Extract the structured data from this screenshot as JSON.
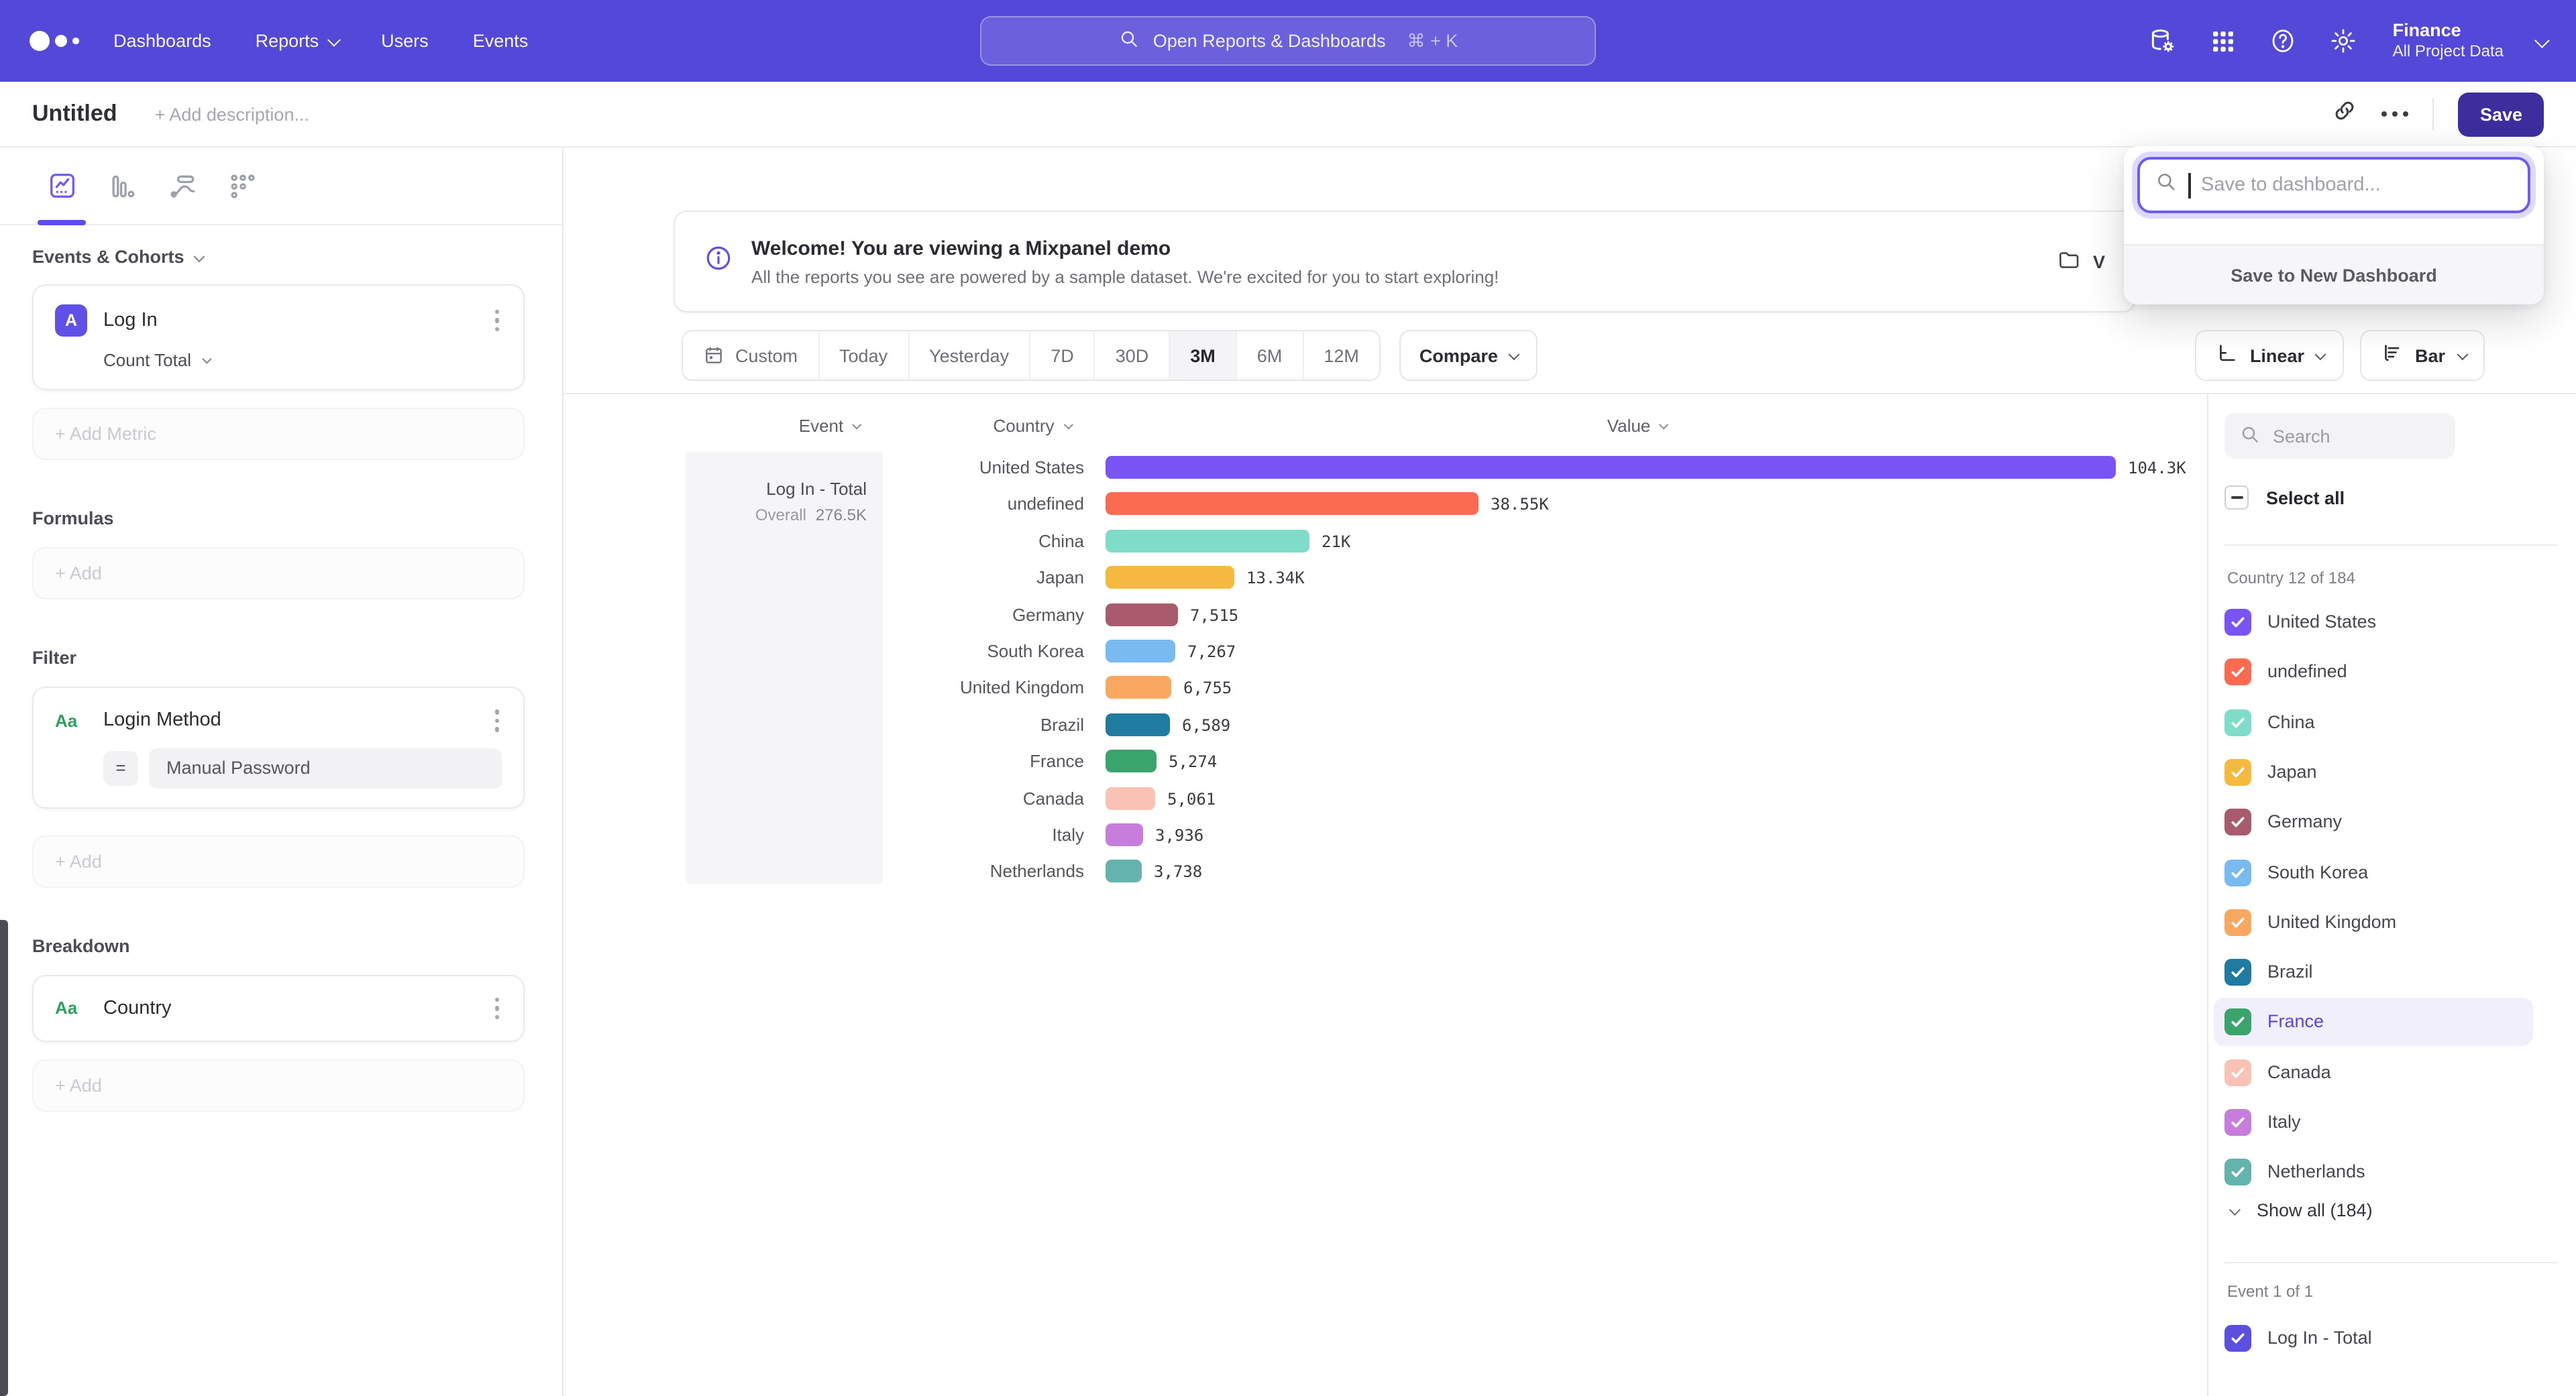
{
  "nav": {
    "items": [
      {
        "label": "Dashboards",
        "chevron": false
      },
      {
        "label": "Reports",
        "chevron": true
      },
      {
        "label": "Users",
        "chevron": false
      },
      {
        "label": "Events",
        "chevron": false
      }
    ],
    "search": {
      "placeholder": "Open Reports & Dashboards",
      "shortcut": "⌘ + K"
    },
    "project": {
      "name": "Finance",
      "scope": "All Project Data"
    }
  },
  "doc": {
    "title": "Untitled",
    "description_placeholder": "+ Add description...",
    "save_label": "Save"
  },
  "save_dropdown": {
    "search_placeholder": "Save to dashboard...",
    "action_label": "Save to New Dashboard"
  },
  "banner": {
    "title": "Welcome! You are viewing a Mixpanel demo",
    "body": "All the reports you see are powered by a sample dataset. We're excited for you to start exploring!",
    "side_button_visible_text": "V"
  },
  "builder": {
    "sections": {
      "metrics": "Events & Cohorts",
      "formulas": "Formulas",
      "filter": "Filter",
      "breakdown": "Breakdown"
    },
    "metric": {
      "badge": "A",
      "name": "Log In",
      "aggregation": "Count Total"
    },
    "add_metric_label": "+ Add Metric",
    "add_label": "+ Add",
    "filter": {
      "type_badge": "Aa",
      "property": "Login Method",
      "operator": "=",
      "value": "Manual Password"
    },
    "breakdown": {
      "type_badge": "Aa",
      "property": "Country"
    }
  },
  "toolbar": {
    "ranges": [
      "Custom",
      "Today",
      "Yesterday",
      "7D",
      "30D",
      "3M",
      "6M",
      "12M"
    ],
    "active_range": "3M",
    "compare_label": "Compare",
    "scale_label": "Linear",
    "chart_type_label": "Bar"
  },
  "chart_data": {
    "type": "bar",
    "orientation": "horizontal",
    "columns": {
      "event": "Event",
      "country": "Country",
      "value": "Value"
    },
    "event_cell": {
      "name": "Log In - Total",
      "overall_label": "Overall",
      "overall_value": "276.5K"
    },
    "categories": [
      "United States",
      "undefined",
      "China",
      "Japan",
      "Germany",
      "South Korea",
      "United Kingdom",
      "Brazil",
      "France",
      "Canada",
      "Italy",
      "Netherlands"
    ],
    "values": [
      104300,
      38550,
      21000,
      13340,
      7515,
      7267,
      6755,
      6589,
      5274,
      5061,
      3936,
      3738
    ],
    "value_labels": [
      "104.3K",
      "38.55K",
      "21K",
      "13.34K",
      "7,515",
      "7,267",
      "6,755",
      "6,589",
      "5,274",
      "5,061",
      "3,936",
      "3,738"
    ],
    "colors": [
      "#7A53F5",
      "#FA6B51",
      "#7EDCC9",
      "#F6B93F",
      "#A85B6D",
      "#79BAF1",
      "#F9A862",
      "#1F7B9F",
      "#39A56D",
      "#F9C2B5",
      "#C77DDB",
      "#64B3AC"
    ],
    "xlim": [
      0,
      104300
    ],
    "grid": false,
    "legend_position": "right"
  },
  "legend": {
    "search_placeholder": "Search",
    "select_all_label": "Select all",
    "group_label": "Country 12 of 184",
    "items": [
      {
        "label": "United States",
        "color": "#7A53F5",
        "selected": true,
        "highlighted": false
      },
      {
        "label": "undefined",
        "color": "#FA6B51",
        "selected": true,
        "highlighted": false
      },
      {
        "label": "China",
        "color": "#7EDCC9",
        "selected": true,
        "highlighted": false
      },
      {
        "label": "Japan",
        "color": "#F6B93F",
        "selected": true,
        "highlighted": false
      },
      {
        "label": "Germany",
        "color": "#A85B6D",
        "selected": true,
        "highlighted": false
      },
      {
        "label": "South Korea",
        "color": "#79BAF1",
        "selected": true,
        "highlighted": false
      },
      {
        "label": "United Kingdom",
        "color": "#F9A862",
        "selected": true,
        "highlighted": false
      },
      {
        "label": "Brazil",
        "color": "#1F7B9F",
        "selected": true,
        "highlighted": false
      },
      {
        "label": "France",
        "color": "#39A56D",
        "selected": true,
        "highlighted": true
      },
      {
        "label": "Canada",
        "color": "#F9C2B5",
        "selected": true,
        "highlighted": false
      },
      {
        "label": "Italy",
        "color": "#C77DDB",
        "selected": true,
        "highlighted": false
      },
      {
        "label": "Netherlands",
        "color": "#64B3AC",
        "selected": true,
        "highlighted": false
      }
    ],
    "show_all_label": "Show all (184)",
    "event_group_label": "Event 1 of 1",
    "event_item": {
      "label": "Log In - Total",
      "color": "#5B4FE0",
      "selected": true
    }
  },
  "colors": {
    "nav_background": "#5348D8",
    "save_button": "#3D2E9E",
    "accent": "#5B4CF0",
    "highlight_row": "#F2EFFC"
  },
  "icons": {
    "logo": "mixpanel-dots",
    "nav_search": "magnifier",
    "nav_1": "data-gear",
    "nav_2": "apps-grid",
    "nav_3": "help-circle",
    "nav_4": "settings-gear",
    "doc_1": "link",
    "doc_2": "more-dots",
    "banner": "info-circle",
    "banner_button": "folder",
    "range_first": "calendar",
    "scale_button": "axes",
    "type_button": "horizontal-bars",
    "tabs": [
      "insights-chart",
      "funnel-bars",
      "flows-curve",
      "retention-dots"
    ]
  }
}
